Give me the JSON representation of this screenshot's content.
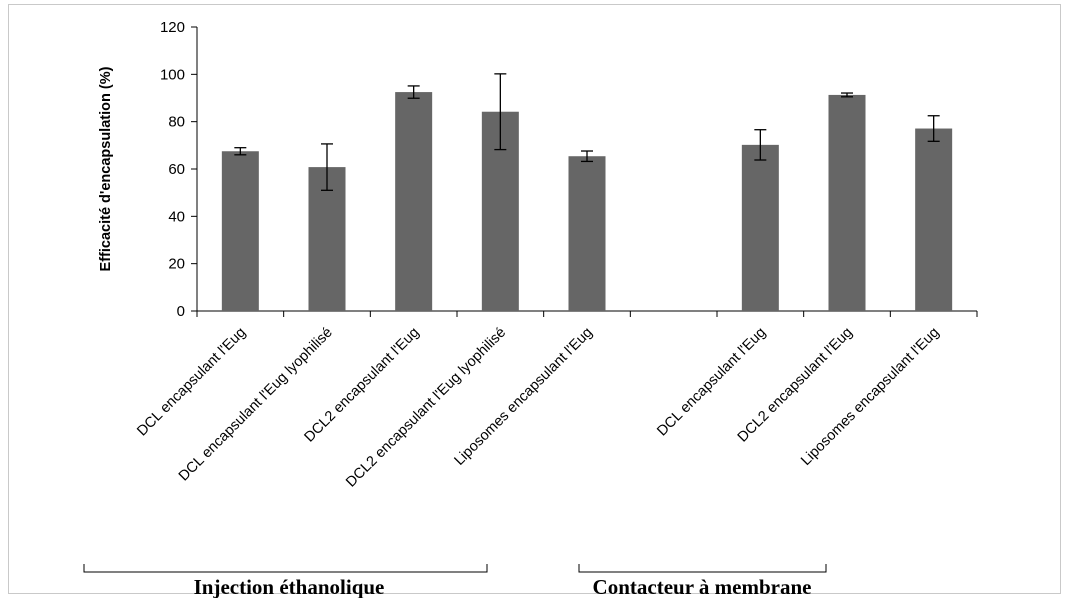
{
  "chart_data": {
    "type": "bar",
    "ylabel": "Efficacité d'encapsulation (%)",
    "ylim": [
      0,
      120
    ],
    "yticks": [
      0,
      20,
      40,
      60,
      80,
      100,
      120
    ],
    "grid": false,
    "legend": "none",
    "categories": [
      "DCL encapsulant l'Eug",
      "DCL encapsulant l'Eug lyophilisé",
      "DCL2 encapsulant l'Eug",
      "DCL2 encapsulant l'Eug lyophilisé",
      "Liposomes encapsulant l'Eug",
      "",
      "DCL encapsulant l'Eug",
      "DCL2 encapsulant l'Eug",
      "Liposomes encapsulant l'Eug"
    ],
    "values": [
      67.5,
      60.8,
      92.5,
      84.2,
      65.4,
      null,
      70.2,
      91.3,
      77.1
    ],
    "error_bars": [
      1.5,
      9.8,
      2.6,
      16.0,
      2.2,
      null,
      6.4,
      0.8,
      5.4
    ],
    "bar_color": "#666666",
    "groups": [
      {
        "label": "Injection éthanolique",
        "categories": [
          0,
          1,
          2,
          3,
          4
        ]
      },
      {
        "label": "Contacteur à membrane",
        "categories": [
          6,
          7,
          8
        ]
      }
    ]
  }
}
